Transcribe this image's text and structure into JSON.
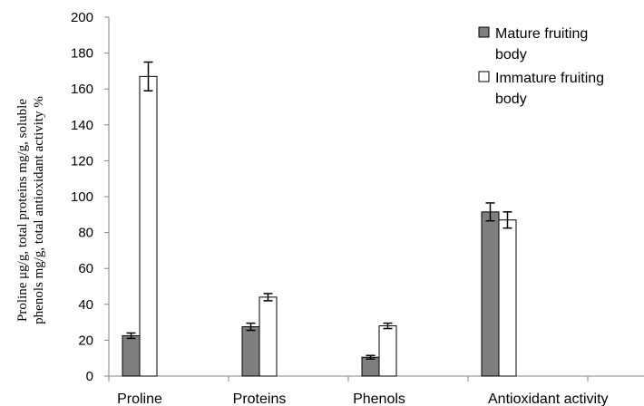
{
  "chart_data": {
    "type": "bar",
    "categories": [
      "Proline",
      "Proteins",
      "Phenols",
      "Antioxidant activity"
    ],
    "ylabel": [
      "Proline μg/g, total proteins mg/g, soluble",
      "phenols mg/g, total antioxidant activity %"
    ],
    "ylim": [
      0,
      200
    ],
    "yticks": [
      0,
      20,
      40,
      60,
      80,
      100,
      120,
      140,
      160,
      180,
      200
    ],
    "grid": false,
    "legend_position": "top-right",
    "series": [
      {
        "name": [
          "Mature fruiting",
          "body"
        ],
        "color": "#7f7f7f",
        "values": [
          22.5,
          27.5,
          10.5,
          91.5
        ],
        "errors": [
          1.5,
          2.0,
          1.0,
          5.0
        ]
      },
      {
        "name": [
          "Immature fruiting",
          "body"
        ],
        "color": "#ffffff",
        "values": [
          167,
          44,
          28,
          87
        ],
        "errors": [
          8.0,
          2.0,
          1.5,
          4.5
        ]
      }
    ]
  }
}
